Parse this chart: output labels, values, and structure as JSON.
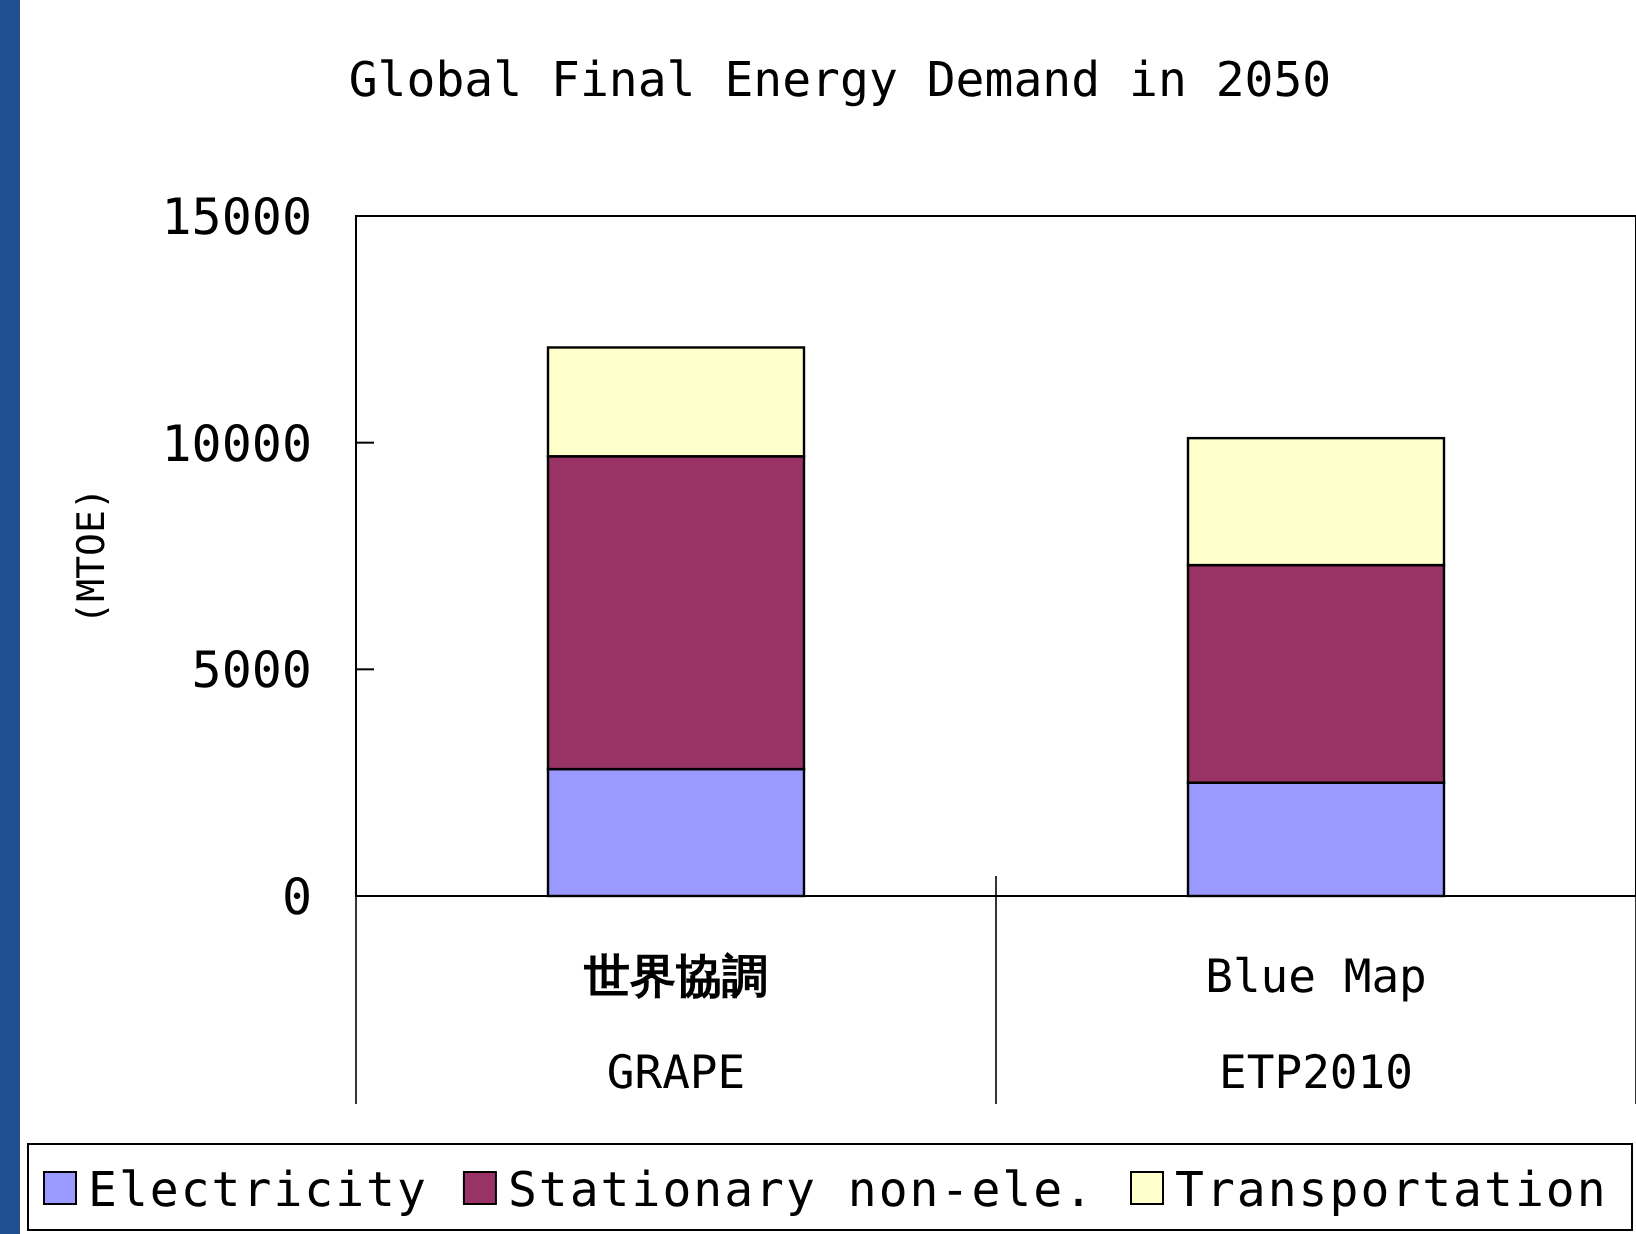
{
  "chart_data": {
    "type": "bar",
    "stacked": true,
    "title": "Global Final Energy Demand in 2050",
    "ylabel": "(MTOE)",
    "categories": [
      "世界協調\nGRAPE",
      "Blue Map\nETP2010"
    ],
    "series": [
      {
        "name": "Electricity",
        "color": "#9999ff",
        "values": [
          2800,
          2500
        ]
      },
      {
        "name": "Stationary non-ele.",
        "color": "#993366",
        "values": [
          6900,
          4800
        ]
      },
      {
        "name": "Transportation",
        "color": "#ffffcc",
        "values": [
          2400,
          2800
        ]
      }
    ],
    "ylim": [
      0,
      15000
    ],
    "yticks": [
      0,
      5000,
      10000,
      15000
    ],
    "grid": false,
    "legend": "bottom"
  }
}
